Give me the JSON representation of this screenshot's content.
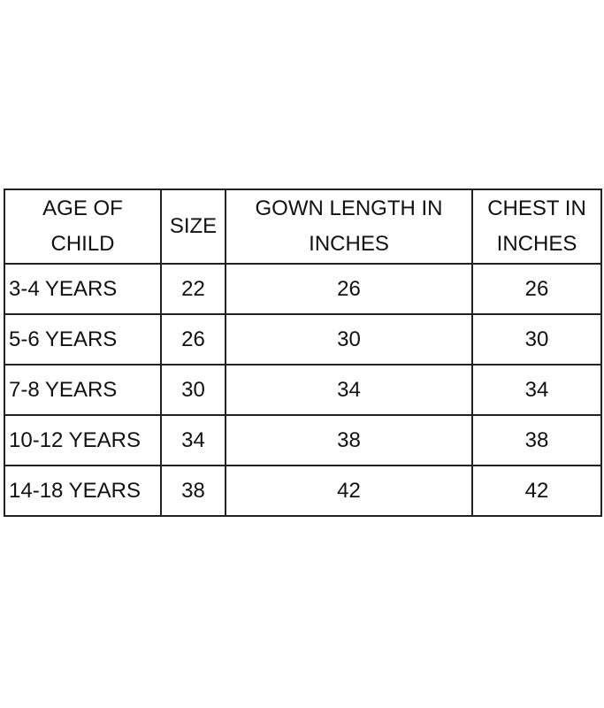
{
  "table": {
    "headers": [
      [
        "AGE OF",
        "CHILD"
      ],
      [
        "SIZE"
      ],
      [
        "GOWN LENGTH IN",
        "INCHES"
      ],
      [
        "CHEST IN",
        "INCHES"
      ]
    ],
    "rows": [
      [
        "3-4 YEARS",
        "22",
        "26",
        "26"
      ],
      [
        "5-6 YEARS",
        "26",
        "30",
        "30"
      ],
      [
        "7-8 YEARS",
        "30",
        "34",
        "34"
      ],
      [
        "10-12 YEARS",
        "34",
        "38",
        "38"
      ],
      [
        "14-18 YEARS",
        "38",
        "42",
        "42"
      ]
    ]
  }
}
